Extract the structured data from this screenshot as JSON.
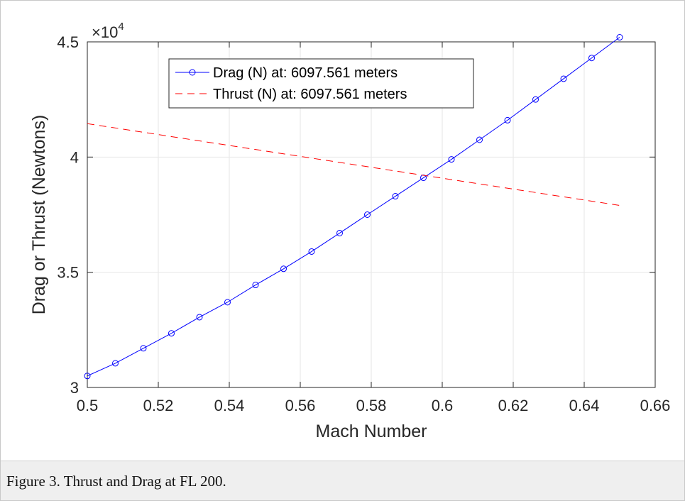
{
  "figure": {
    "caption": "Figure 3. Thrust and Drag at FL 200."
  },
  "chart_data": {
    "type": "line",
    "xlabel": "Mach Number",
    "ylabel": "Drag or Thrust (Newtons)",
    "y_exponent_label": "×10",
    "y_exponent_power": "4",
    "xlim": [
      0.5,
      0.66
    ],
    "ylim": [
      3.0,
      4.5
    ],
    "x_ticks": [
      "0.5",
      "0.52",
      "0.54",
      "0.56",
      "0.58",
      "0.6",
      "0.62",
      "0.64",
      "0.66"
    ],
    "y_ticks": [
      "3",
      "3.5",
      "4",
      "4.5"
    ],
    "x_tick_values": [
      0.5,
      0.52,
      0.54,
      0.56,
      0.58,
      0.6,
      0.62,
      0.64,
      0.66
    ],
    "y_tick_values": [
      3.0,
      3.5,
      4.0,
      4.5
    ],
    "grid": true,
    "legend_position": "top-center",
    "series": [
      {
        "name": "Drag (N) at: 6097.561 meters",
        "color": "#0000ff",
        "line_style": "solid",
        "marker": "circle",
        "x": [
          0.5,
          0.5079,
          0.5158,
          0.5237,
          0.5316,
          0.5395,
          0.5474,
          0.5553,
          0.5632,
          0.5711,
          0.5789,
          0.5868,
          0.5947,
          0.6026,
          0.6105,
          0.6184,
          0.6263,
          0.6342,
          0.6421,
          0.65
        ],
        "y": [
          3.05,
          3.105,
          3.17,
          3.235,
          3.305,
          3.37,
          3.445,
          3.515,
          3.59,
          3.67,
          3.75,
          3.83,
          3.91,
          3.99,
          4.075,
          4.16,
          4.25,
          4.34,
          4.43,
          4.52
        ]
      },
      {
        "name": "Thrust (N) at: 6097.561 meters",
        "color": "#ff0000",
        "line_style": "dashed",
        "marker": "none",
        "x": [
          0.5,
          0.65
        ],
        "y": [
          4.145,
          3.79
        ]
      }
    ]
  }
}
